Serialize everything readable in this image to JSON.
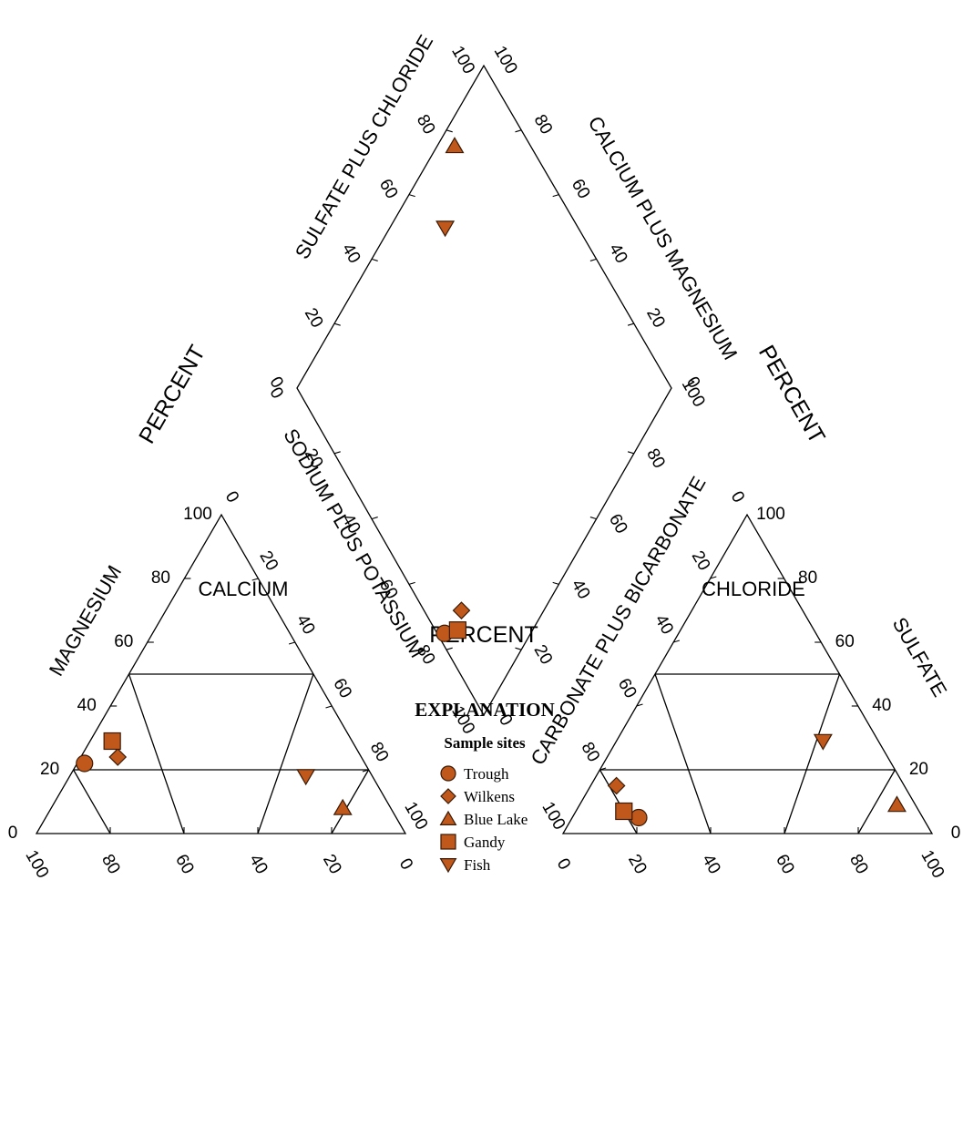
{
  "chart_data": {
    "type": "scatter",
    "subtype": "piper trilinear diagram",
    "color": "#c0581b",
    "cation": {
      "title": "CALCIUM",
      "left_label": "MAGNESIUM",
      "right_label": "SODIUM PLUS POTASSIUM",
      "bottom_label": "CALCIUM"
    },
    "anion": {
      "title": "CHLORIDE",
      "left_label": "CARBONATE PLUS BICARBONATE",
      "right_label": "SULFATE",
      "bottom_label": "CHLORIDE"
    },
    "diamond": {
      "upper_left_label": "SULFATE PLUS CHLORIDE",
      "upper_right_label": "CALCIUM PLUS MAGNESIUM"
    },
    "percent_label": "PERCENT",
    "tick_labels": [
      "0",
      "20",
      "40",
      "60",
      "80",
      "100"
    ],
    "series": [
      {
        "name": "Trough",
        "marker": "circle",
        "cation": {
          "Mg": 22,
          "NaK": 2,
          "Ca": 76
        },
        "anion": {
          "SO4": 5,
          "Cl": 18,
          "HCO3": 77
        }
      },
      {
        "name": "Wilkens",
        "marker": "diamond",
        "cation": {
          "Mg": 24,
          "NaK": 10,
          "Ca": 66
        },
        "anion": {
          "SO4": 15,
          "Cl": 7,
          "HCO3": 78
        }
      },
      {
        "name": "Blue Lake",
        "marker": "triangle-up",
        "cation": {
          "Mg": 8,
          "NaK": 79,
          "Ca": 13
        },
        "anion": {
          "SO4": 9,
          "Cl": 86,
          "HCO3": 5
        }
      },
      {
        "name": "Gandy",
        "marker": "square",
        "cation": {
          "Mg": 29,
          "NaK": 6,
          "Ca": 65
        },
        "anion": {
          "SO4": 7,
          "Cl": 13,
          "HCO3": 80
        }
      },
      {
        "name": "Fish",
        "marker": "triangle-down",
        "cation": {
          "Mg": 18,
          "NaK": 64,
          "Ca": 18
        },
        "anion": {
          "SO4": 29,
          "Cl": 56,
          "HCO3": 15
        }
      }
    ]
  },
  "explanation": {
    "title": "EXPLANATION",
    "subtitle": "Sample sites"
  }
}
